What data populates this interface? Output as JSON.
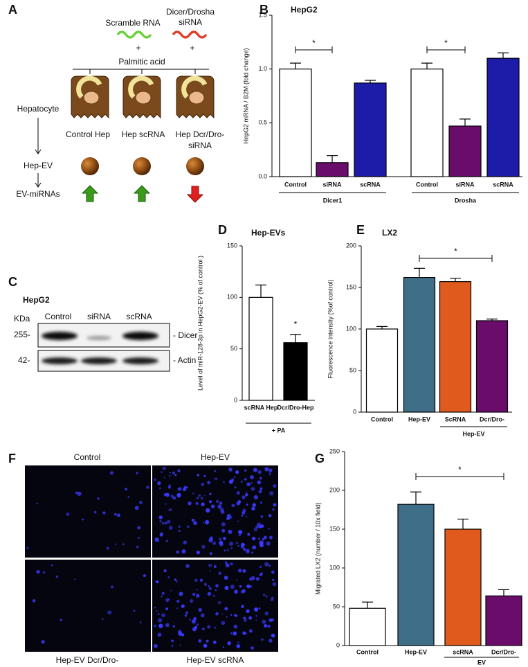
{
  "panel_a": {
    "letter": "A",
    "scramble": "Scramble RNA",
    "dicer_drosha": [
      "Dicer/Drosha",
      "siRNA"
    ],
    "plus": "+",
    "palmitic": "Palmitic acid",
    "hepatocyte": "Hepatocyte",
    "cells": [
      [
        "Control Hep"
      ],
      [
        "Hep scRNA"
      ],
      [
        "Hep Dcr/Dro-",
        "siRNA"
      ]
    ],
    "hep_ev": "Hep-EV",
    "ev_mirnas": "EV-miRNAs"
  },
  "panel_c": {
    "letter": "C",
    "title": "HepG2",
    "unit": "KDa",
    "lanes": [
      "Control",
      "siRNA",
      "scRNA"
    ],
    "rows": [
      {
        "marker": "255-",
        "label": "- Dicer"
      },
      {
        "marker": "42-",
        "label": "- Actin"
      }
    ]
  },
  "panel_f": {
    "letter": "F",
    "images": [
      "Control",
      "Hep-EV",
      "Hep-EV Dcr/Dro-",
      "Hep-EV scRNA"
    ]
  },
  "chart_data": [
    {
      "type": "bar",
      "panel": "B",
      "title": "HepG2",
      "y_label": "HepG2 mRNA / B2M (fold change)",
      "categories": [
        "Control",
        "siRNA",
        "scRNA",
        "Control",
        "siRNA",
        "scRNA"
      ],
      "values": [
        1.0,
        0.13,
        0.87,
        1.0,
        0.47,
        1.1
      ],
      "errors": [
        0.055,
        0.065,
        0.025,
        0.055,
        0.065,
        0.05
      ],
      "colors": [
        "#ffffff",
        "#6a0d6a",
        "#1c1ca8",
        "#ffffff",
        "#6a0d6a",
        "#1c1ca8"
      ],
      "groups": [
        "Dicer1",
        "Drosha"
      ],
      "annotations": [
        "*",
        "*"
      ],
      "ylim": [
        0,
        1.5
      ],
      "yticks": [
        {
          "value": 0,
          "label": "0.0"
        },
        {
          "value": 0.5,
          "label": "0.5"
        },
        {
          "value": 1,
          "label": "1.0"
        },
        {
          "value": 1.5,
          "label": "1.5"
        }
      ]
    },
    {
      "type": "bar",
      "panel": "D",
      "title": "Hep-EVs",
      "y_label": "Level of miR-128-3p in HepG2-EV (% of control )",
      "categories": [
        "scRNA Hep",
        "Dcr/Dro-Hep"
      ],
      "values": [
        100,
        56
      ],
      "errors": [
        12,
        8
      ],
      "colors": [
        "#ffffff",
        "#000000"
      ],
      "groups": [
        "+ PA"
      ],
      "annotations": [
        "*"
      ],
      "ylim": [
        0,
        150
      ],
      "yticks": [
        0,
        50,
        100,
        150
      ]
    },
    {
      "type": "bar",
      "panel": "E",
      "title": "LX2",
      "y_label": "Fluorescence intensity (%of control)",
      "categories": [
        "Control",
        "Hep-EV",
        "ScRNA",
        "Dcr/Dro-"
      ],
      "values": [
        100,
        162,
        157,
        110
      ],
      "errors": [
        3,
        11,
        4,
        2
      ],
      "colors": [
        "#ffffff",
        "#3e6e88",
        "#e05a1e",
        "#6a0d6a"
      ],
      "groups": [
        "Hep-EV"
      ],
      "annotations": [
        "*"
      ],
      "ylim": [
        0,
        200
      ],
      "yticks": [
        0,
        50,
        100,
        150,
        200
      ]
    },
    {
      "type": "bar",
      "panel": "G",
      "y_label": "Migrated LX2 (number / 10x field)",
      "categories": [
        "Control",
        "Hep-EV",
        "scRNA",
        "Dcr/Dro-"
      ],
      "values": [
        48,
        182,
        150,
        64
      ],
      "errors": [
        8,
        16,
        13,
        8
      ],
      "colors": [
        "#ffffff",
        "#3e6e88",
        "#e05a1e",
        "#6a0d6a"
      ],
      "groups": [
        "EV"
      ],
      "annotations": [
        "*"
      ],
      "ylim": [
        0,
        250
      ],
      "yticks": [
        0,
        50,
        100,
        150,
        200,
        250
      ]
    }
  ]
}
